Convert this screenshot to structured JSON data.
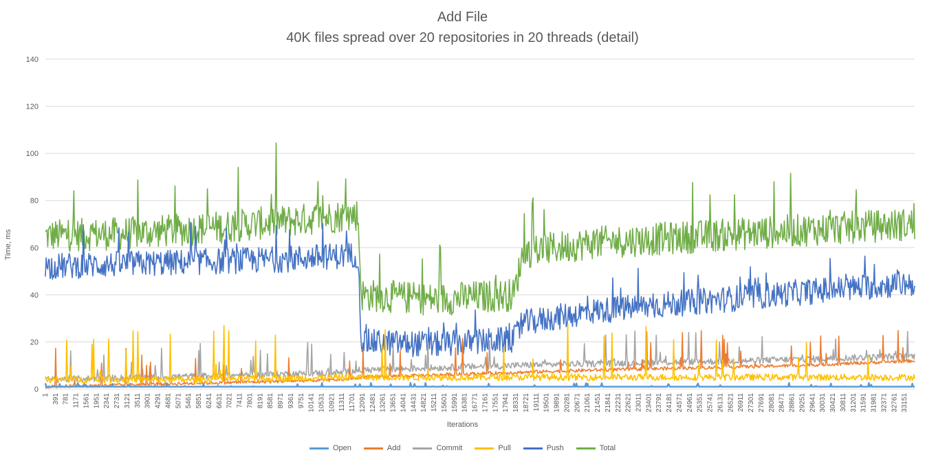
{
  "chart_data": {
    "type": "line",
    "title": "Add File",
    "subtitle": "40K files spread over 20 repositories in 20 threads (detail)",
    "xlabel": "Iterations",
    "ylabel": "Time, ms",
    "ylim": [
      0,
      140
    ],
    "yticks": [
      0,
      20,
      40,
      60,
      80,
      100,
      120,
      140
    ],
    "grid": true,
    "legend_position": "bottom",
    "x_tick_labels": [
      "1",
      "391",
      "781",
      "1171",
      "1561",
      "1951",
      "2341",
      "2731",
      "3121",
      "3511",
      "3901",
      "4291",
      "4681",
      "5071",
      "5461",
      "5851",
      "6241",
      "6631",
      "7021",
      "7411",
      "7801",
      "8191",
      "8581",
      "8971",
      "9361",
      "9751",
      "10141",
      "10531",
      "10921",
      "11311",
      "11701",
      "12091",
      "12481",
      "13261",
      "13651",
      "14041",
      "14431",
      "14821",
      "15211",
      "15601",
      "15991",
      "16381",
      "16771",
      "17161",
      "17551",
      "17941",
      "18331",
      "18721",
      "19111",
      "19501",
      "19891",
      "20281",
      "20671",
      "21061",
      "21451",
      "21841",
      "22231",
      "22621",
      "23011",
      "23401",
      "23791",
      "24181",
      "24571",
      "24961",
      "25351",
      "25741",
      "26131",
      "26521",
      "26911",
      "27301",
      "27691",
      "28081",
      "28471",
      "28861",
      "29251",
      "29641",
      "30031",
      "30421",
      "30811",
      "31201",
      "31591",
      "31981",
      "32371",
      "32761",
      "33151"
    ],
    "x_range": [
      1,
      33400
    ],
    "series": [
      {
        "name": "Open",
        "color": "#5B9BD5",
        "points": [
          [
            1,
            1
          ],
          [
            5000,
            1
          ],
          [
            12000,
            1
          ],
          [
            20000,
            1
          ],
          [
            33400,
            1
          ]
        ]
      },
      {
        "name": "Add",
        "color": "#ED7D31",
        "points": [
          [
            1,
            1
          ],
          [
            4000,
            2
          ],
          [
            8000,
            3
          ],
          [
            11500,
            4
          ],
          [
            12100,
            5
          ],
          [
            15000,
            6
          ],
          [
            18000,
            7
          ],
          [
            21000,
            8
          ],
          [
            25000,
            9
          ],
          [
            29000,
            10
          ],
          [
            33400,
            12
          ]
        ]
      },
      {
        "name": "Commit",
        "color": "#A5A5A5",
        "points": [
          [
            1,
            4
          ],
          [
            4000,
            5
          ],
          [
            8000,
            6
          ],
          [
            11500,
            7
          ],
          [
            12100,
            8
          ],
          [
            15000,
            9
          ],
          [
            18000,
            10
          ],
          [
            22000,
            11
          ],
          [
            27000,
            12
          ],
          [
            33400,
            14
          ]
        ]
      },
      {
        "name": "Pull",
        "color": "#FFC000",
        "points": [
          [
            1,
            4
          ],
          [
            6000,
            4
          ],
          [
            12000,
            5
          ],
          [
            18000,
            5
          ],
          [
            25000,
            5
          ],
          [
            33400,
            5
          ]
        ]
      },
      {
        "name": "Push",
        "color": "#4472C4",
        "points": [
          [
            1,
            52
          ],
          [
            3000,
            53
          ],
          [
            6000,
            54
          ],
          [
            9000,
            55
          ],
          [
            12000,
            57
          ],
          [
            12150,
            20
          ],
          [
            15000,
            19
          ],
          [
            18000,
            21
          ],
          [
            18350,
            28
          ],
          [
            21000,
            33
          ],
          [
            24000,
            36
          ],
          [
            27000,
            39
          ],
          [
            30000,
            42
          ],
          [
            33400,
            45
          ]
        ]
      },
      {
        "name": "Total",
        "color": "#70AD47",
        "points": [
          [
            1,
            65
          ],
          [
            3000,
            66
          ],
          [
            6000,
            68
          ],
          [
            9000,
            71
          ],
          [
            12000,
            74
          ],
          [
            12150,
            40
          ],
          [
            15000,
            38
          ],
          [
            18000,
            40
          ],
          [
            18350,
            58
          ],
          [
            21000,
            62
          ],
          [
            24000,
            64
          ],
          [
            27000,
            66
          ],
          [
            30000,
            68
          ],
          [
            33400,
            70
          ]
        ]
      }
    ]
  }
}
